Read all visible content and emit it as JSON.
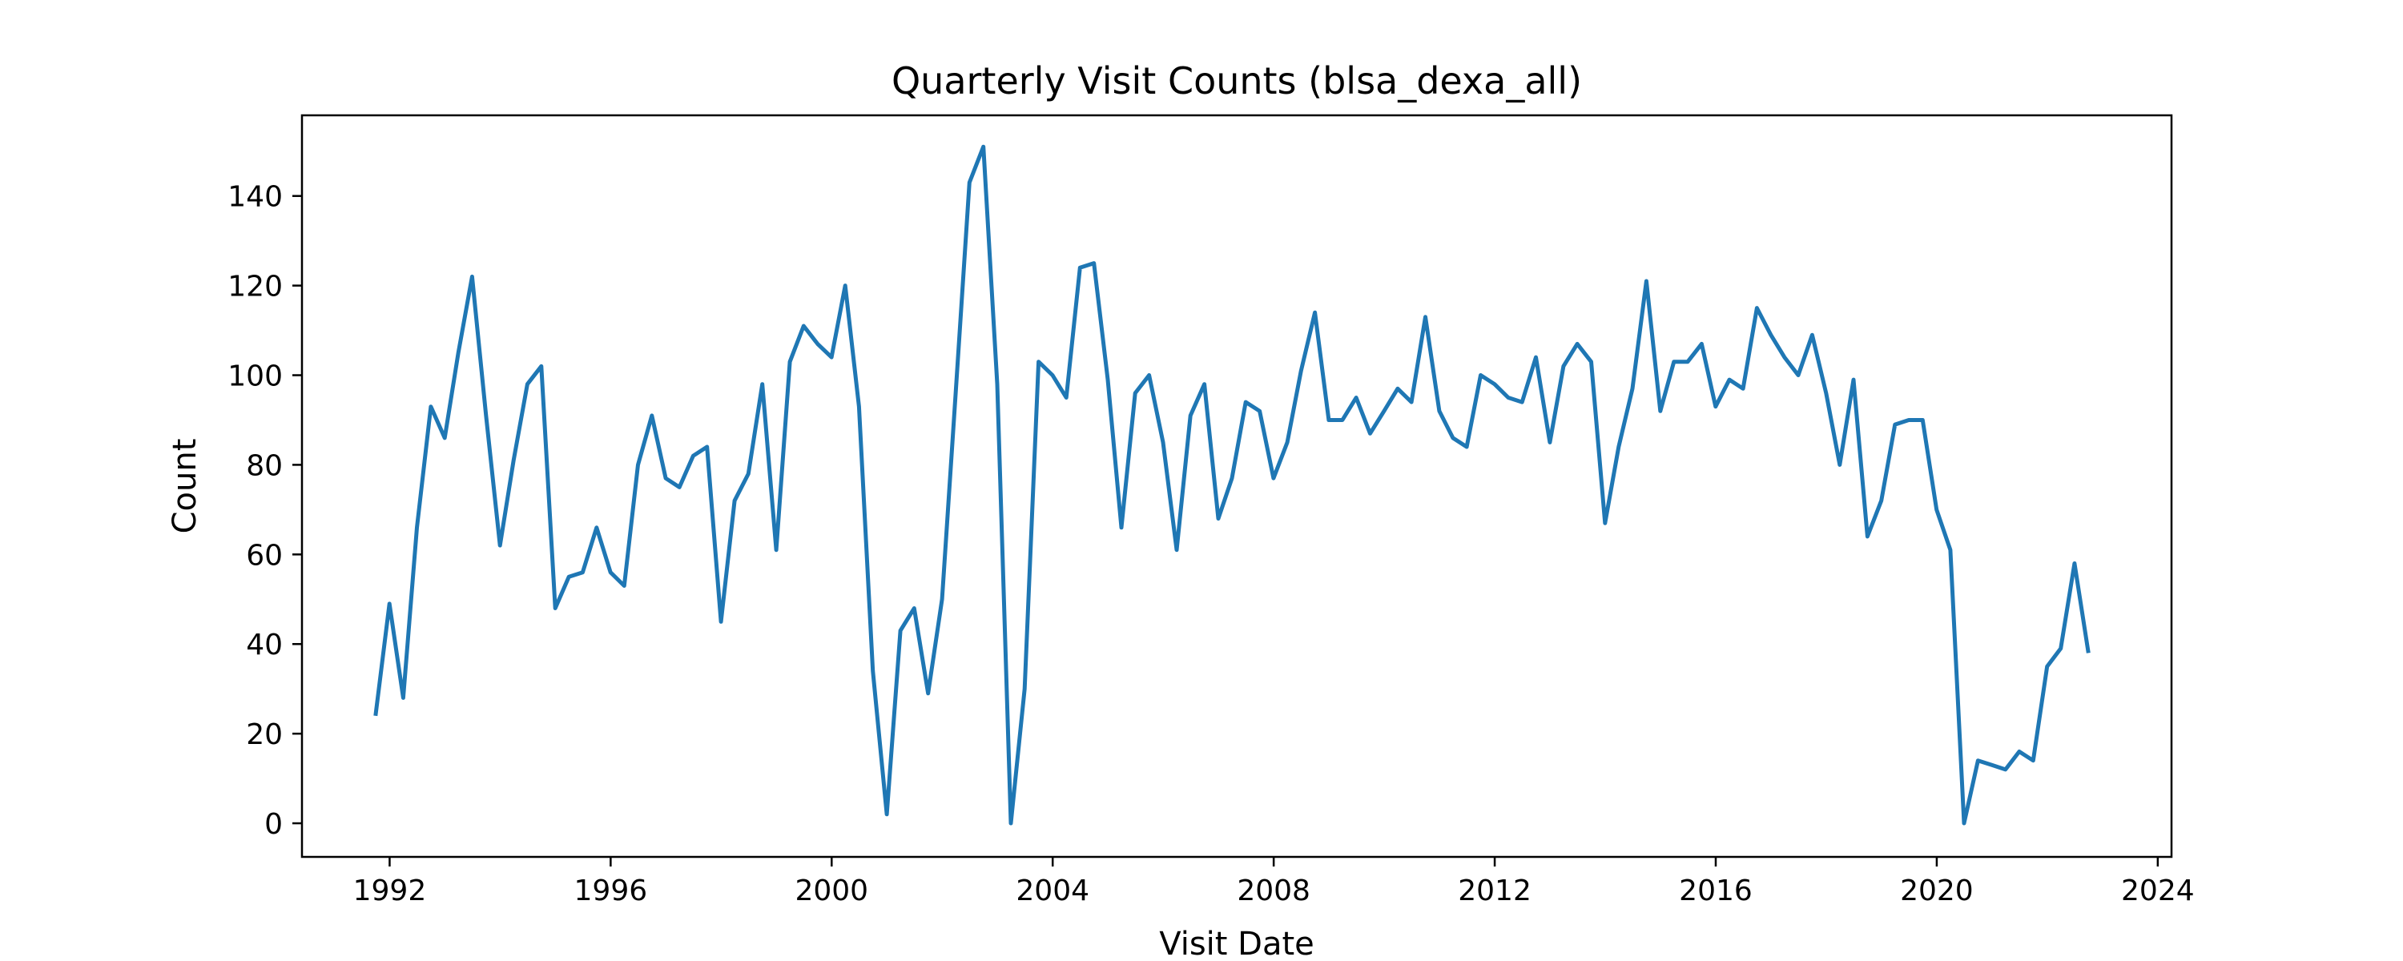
{
  "chart_data": {
    "type": "line",
    "title": "Quarterly Visit Counts (blsa_dexa_all)",
    "xlabel": "Visit Date",
    "ylabel": "Count",
    "x_ticks": [
      "1992",
      "1996",
      "2000",
      "2004",
      "2008",
      "2012",
      "2016",
      "2020",
      "2024"
    ],
    "y_ticks": [
      "0",
      "20",
      "40",
      "60",
      "80",
      "100",
      "120",
      "140"
    ],
    "xlim": [
      "1990-06-01",
      "2024-04-01"
    ],
    "ylim": [
      -7.5,
      158
    ],
    "grid": false,
    "series_color": "#1f77b4",
    "x": [
      "1991-09-30",
      "1991-12-31",
      "1992-03-31",
      "1992-06-30",
      "1992-09-30",
      "1992-12-31",
      "1993-03-31",
      "1993-06-30",
      "1993-09-30",
      "1993-12-31",
      "1994-03-31",
      "1994-06-30",
      "1994-09-30",
      "1994-12-31",
      "1995-03-31",
      "1995-06-30",
      "1995-09-30",
      "1995-12-31",
      "1996-03-31",
      "1996-06-30",
      "1996-09-30",
      "1996-12-31",
      "1997-03-31",
      "1997-06-30",
      "1997-09-30",
      "1997-12-31",
      "1998-03-31",
      "1998-06-30",
      "1998-09-30",
      "1998-12-31",
      "1999-03-31",
      "1999-06-30",
      "1999-09-30",
      "1999-12-31",
      "2000-03-31",
      "2000-06-30",
      "2000-09-30",
      "2000-12-31",
      "2001-03-31",
      "2001-06-30",
      "2001-09-30",
      "2001-12-31",
      "2002-03-31",
      "2002-06-30",
      "2002-09-30",
      "2002-12-31",
      "2003-03-31",
      "2003-06-30",
      "2003-09-30",
      "2003-12-31",
      "2004-03-31",
      "2004-06-30",
      "2004-09-30",
      "2004-12-31",
      "2005-03-31",
      "2005-06-30",
      "2005-09-30",
      "2005-12-31",
      "2006-03-31",
      "2006-06-30",
      "2006-09-30",
      "2006-12-31",
      "2007-03-31",
      "2007-06-30",
      "2007-09-30",
      "2007-12-31",
      "2008-03-31",
      "2008-06-30",
      "2008-09-30",
      "2008-12-31",
      "2009-03-31",
      "2009-06-30",
      "2009-09-30",
      "2009-12-31",
      "2010-03-31",
      "2010-06-30",
      "2010-09-30",
      "2010-12-31",
      "2011-03-31",
      "2011-06-30",
      "2011-09-30",
      "2011-12-31",
      "2012-03-31",
      "2012-06-30",
      "2012-09-30",
      "2012-12-31",
      "2013-03-31",
      "2013-06-30",
      "2013-09-30",
      "2013-12-31",
      "2014-03-31",
      "2014-06-30",
      "2014-09-30",
      "2014-12-31",
      "2015-03-31",
      "2015-06-30",
      "2015-09-30",
      "2015-12-31",
      "2016-03-31",
      "2016-06-30",
      "2016-09-30",
      "2016-12-31",
      "2017-03-31",
      "2017-06-30",
      "2017-09-30",
      "2017-12-31",
      "2018-03-31",
      "2018-06-30",
      "2018-09-30",
      "2018-12-31",
      "2019-03-31",
      "2019-06-30",
      "2019-09-30",
      "2019-12-31",
      "2020-03-31",
      "2020-06-30",
      "2020-09-30",
      "2020-12-31",
      "2021-03-31",
      "2021-06-30",
      "2021-09-30",
      "2021-12-31",
      "2022-03-31",
      "2022-06-30",
      "2022-09-30"
    ],
    "values": [
      24,
      49,
      28,
      66,
      93,
      86,
      105,
      122,
      91,
      62,
      81,
      98,
      102,
      48,
      55,
      56,
      66,
      56,
      53,
      80,
      91,
      77,
      75,
      82,
      84,
      45,
      72,
      78,
      98,
      61,
      103,
      111,
      107,
      104,
      120,
      93,
      34,
      2,
      43,
      48,
      29,
      50,
      96,
      143,
      151,
      98,
      0,
      30,
      103,
      100,
      95,
      124,
      125,
      99,
      66,
      96,
      100,
      85,
      61,
      91,
      98,
      68,
      77,
      94,
      92,
      77,
      85,
      101,
      114,
      90,
      90,
      95,
      87,
      92,
      97,
      94,
      113,
      92,
      86,
      84,
      100,
      98,
      95,
      94,
      104,
      85,
      102,
      107,
      103,
      67,
      84,
      97,
      121,
      92,
      103,
      103,
      107,
      93,
      99,
      97,
      115,
      109,
      104,
      100,
      109,
      96,
      80,
      99,
      64,
      72,
      89,
      90,
      90,
      70,
      61,
      0,
      14,
      13,
      12,
      16,
      14,
      35,
      39,
      58,
      38
    ]
  }
}
